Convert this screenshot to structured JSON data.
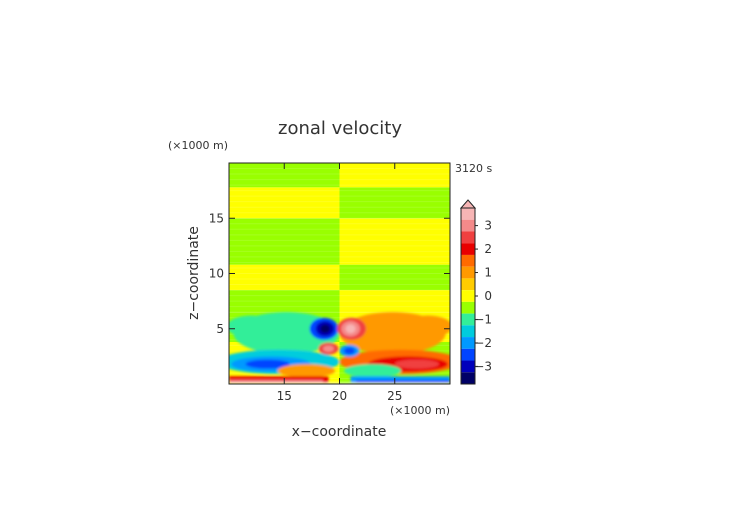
{
  "chart_data": {
    "type": "heatmap",
    "title": "zonal velocity",
    "xlabel": "x−coordinate",
    "ylabel": "z−coordinate",
    "x_unit_label": "(×1000 m)",
    "y_unit_label": "(×1000 m)",
    "time_label": "3120 s",
    "xlim": [
      10,
      30
    ],
    "ylim": [
      0,
      20
    ],
    "x_ticks": [
      15,
      20,
      25
    ],
    "y_ticks": [
      5,
      10,
      15
    ],
    "colorbar": {
      "tick_labels": [
        3,
        2,
        1,
        0,
        -1,
        -2,
        -3
      ],
      "levels_top_to_bottom": [
        {
          "value": 3.5,
          "color": "#f7b5b5"
        },
        {
          "value": 3.0,
          "color": "#f48a8a"
        },
        {
          "value": 2.5,
          "color": "#f04040"
        },
        {
          "value": 2.0,
          "color": "#e80000"
        },
        {
          "value": 1.5,
          "color": "#ff6a00"
        },
        {
          "value": 1.0,
          "color": "#ff9900"
        },
        {
          "value": 0.5,
          "color": "#ffcc00"
        },
        {
          "value": 0.0,
          "color": "#ffff00"
        },
        {
          "value": -0.5,
          "color": "#99ff00"
        },
        {
          "value": -1.0,
          "color": "#33ee99"
        },
        {
          "value": -1.5,
          "color": "#00ccdd"
        },
        {
          "value": -2.0,
          "color": "#0099ff"
        },
        {
          "value": -2.5,
          "color": "#0044ff"
        },
        {
          "value": -3.0,
          "color": "#0000bb"
        },
        {
          "value": -3.5,
          "color": "#000066"
        }
      ],
      "extends_above": true
    },
    "horizontal_bands_left_half": [
      {
        "z_range": [
          0,
          3.8
        ],
        "sign": "positive"
      },
      {
        "z_range": [
          3.8,
          6.5
        ],
        "sign": "negative"
      },
      {
        "z_range": [
          6.5,
          8.5
        ],
        "sign": "negative"
      },
      {
        "z_range": [
          8.5,
          10.8
        ],
        "sign": "positive"
      },
      {
        "z_range": [
          10.8,
          15.0
        ],
        "sign": "negative"
      },
      {
        "z_range": [
          15.0,
          17.8
        ],
        "sign": "positive"
      },
      {
        "z_range": [
          17.8,
          20.0
        ],
        "sign": "negative"
      }
    ],
    "features": [
      {
        "name": "negative core",
        "x": 18.7,
        "z": 5.0,
        "value": -3.5
      },
      {
        "name": "positive core",
        "x": 21.0,
        "z": 5.0,
        "value": 3.5
      },
      {
        "name": "positive lobe",
        "x": 19.0,
        "z": 3.2,
        "value": 3.0
      },
      {
        "name": "negative lobe",
        "x": 20.9,
        "z": 3.0,
        "value": -2.5
      },
      {
        "name": "negative low-level jet",
        "x": 13.5,
        "z": 1.8,
        "value": -2.5
      },
      {
        "name": "positive low-level jet",
        "x": 27.0,
        "z": 1.8,
        "value": 2.5
      },
      {
        "name": "surface positive layer",
        "x": 14.0,
        "z": 0.2,
        "value": 3.0
      },
      {
        "name": "surface negative layer",
        "x": 26.0,
        "z": 0.2,
        "value": -2.5
      }
    ]
  }
}
